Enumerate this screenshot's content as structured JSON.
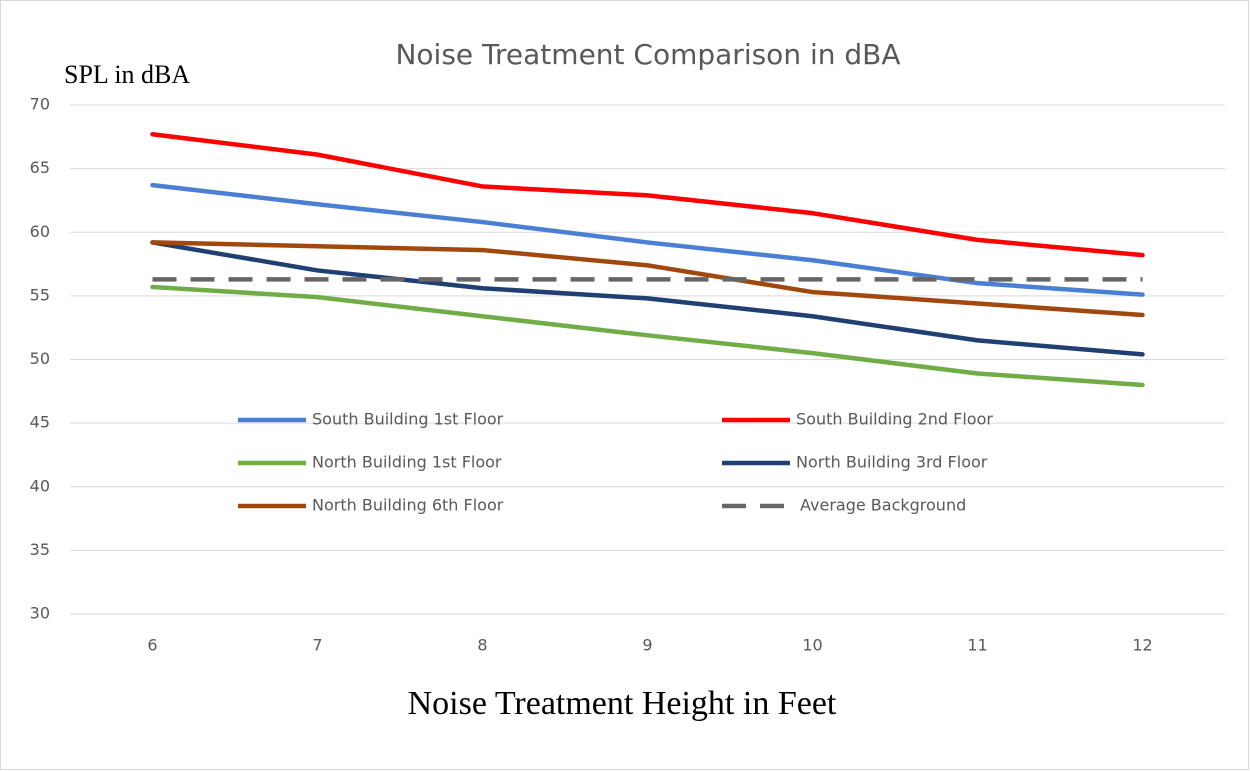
{
  "chart_data": {
    "type": "line",
    "title": "Noise Treatment Comparison in dBA",
    "y_label": "SPL in dBA",
    "x_label": "Noise Treatment Height in Feet",
    "categories": [
      "6",
      "7",
      "8",
      "9",
      "10",
      "11",
      "12"
    ],
    "series": [
      {
        "name": "South Building 1st Floor",
        "color": "#4a7fd4",
        "values": [
          63.7,
          62.2,
          60.8,
          59.2,
          57.8,
          56.0,
          55.1
        ]
      },
      {
        "name": "South Building 2nd Floor",
        "color": "#ff0000",
        "values": [
          67.7,
          66.1,
          63.6,
          62.9,
          61.5,
          59.4,
          58.2
        ]
      },
      {
        "name": "North Building 1st Floor",
        "color": "#70ad47",
        "values": [
          55.7,
          54.9,
          53.4,
          51.9,
          50.5,
          48.9,
          48.0
        ]
      },
      {
        "name": "North Building 3rd Floor",
        "color": "#203f73",
        "values": [
          59.2,
          57.0,
          55.6,
          54.8,
          53.4,
          51.5,
          50.4
        ]
      },
      {
        "name": "North Building 6th Floor",
        "color": "#a0480d",
        "values": [
          59.2,
          58.9,
          58.6,
          57.4,
          55.3,
          54.4,
          53.5
        ]
      },
      {
        "name": "Average Background",
        "color": "#666666",
        "dash": true,
        "values": [
          56.3,
          56.3,
          56.3,
          56.3,
          56.3,
          56.3,
          56.3
        ]
      }
    ],
    "ylim": [
      30,
      70
    ],
    "yticks": [
      30,
      35,
      40,
      45,
      50,
      55,
      60,
      65,
      70
    ],
    "grid": true,
    "legend": "center"
  }
}
